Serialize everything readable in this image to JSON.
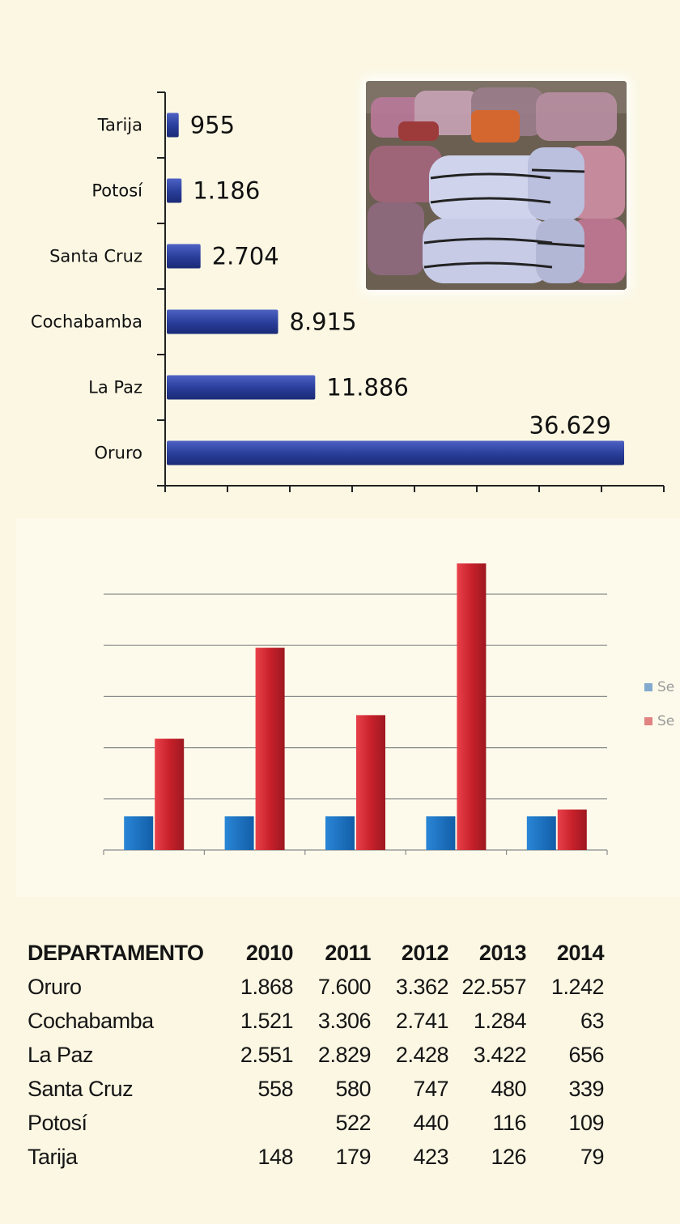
{
  "chart_data": [
    {
      "type": "bar",
      "orientation": "horizontal",
      "categories": [
        "Tarija",
        "Potosí",
        "Santa Cruz",
        "Cochabamba",
        "La Paz",
        "Oruro"
      ],
      "values": [
        955,
        1186,
        2704,
        8915,
        11886,
        36629
      ],
      "value_labels": [
        "955",
        "1.186",
        "2.704",
        "8.915",
        "11.886",
        "36.629"
      ],
      "xlim": [
        0,
        40000
      ],
      "x_tick_count": 8,
      "bar_color": "#2b3f9c",
      "grid": false
    },
    {
      "type": "bar",
      "orientation": "vertical",
      "categories": [
        "",
        "",
        "",
        "",
        ""
      ],
      "series": [
        {
          "values": [
            1,
            1,
            1,
            1,
            1
          ],
          "color": "#1e67b6"
        },
        {
          "values": [
            3.3,
            6.0,
            4.0,
            8.5,
            1.2
          ],
          "color": "#c8212b"
        }
      ],
      "ylim": [
        0,
        8.5
      ],
      "grid": true,
      "legend_position": "right",
      "legend_labels": [
        "Se",
        "Se"
      ]
    }
  ],
  "photo": {
    "description_icon": "clothing-bales-photo"
  },
  "table": {
    "headers": [
      "DEPARTAMENTO",
      "2010",
      "2011",
      "2012",
      "2013",
      "2014"
    ],
    "rows": [
      [
        "Oruro",
        "1.868",
        "7.600",
        "3.362",
        "22.557",
        "1.242"
      ],
      [
        "Cochabamba",
        "1.521",
        "3.306",
        "2.741",
        "1.284",
        "63"
      ],
      [
        "La Paz",
        "2.551",
        "2.829",
        "2.428",
        "3.422",
        "656"
      ],
      [
        "Santa Cruz",
        "558",
        "580",
        "747",
        "480",
        "339"
      ],
      [
        "Potosí",
        "",
        "522",
        "440",
        "116",
        "109"
      ],
      [
        "Tarija",
        "148",
        "179",
        "423",
        "126",
        "79"
      ]
    ]
  }
}
